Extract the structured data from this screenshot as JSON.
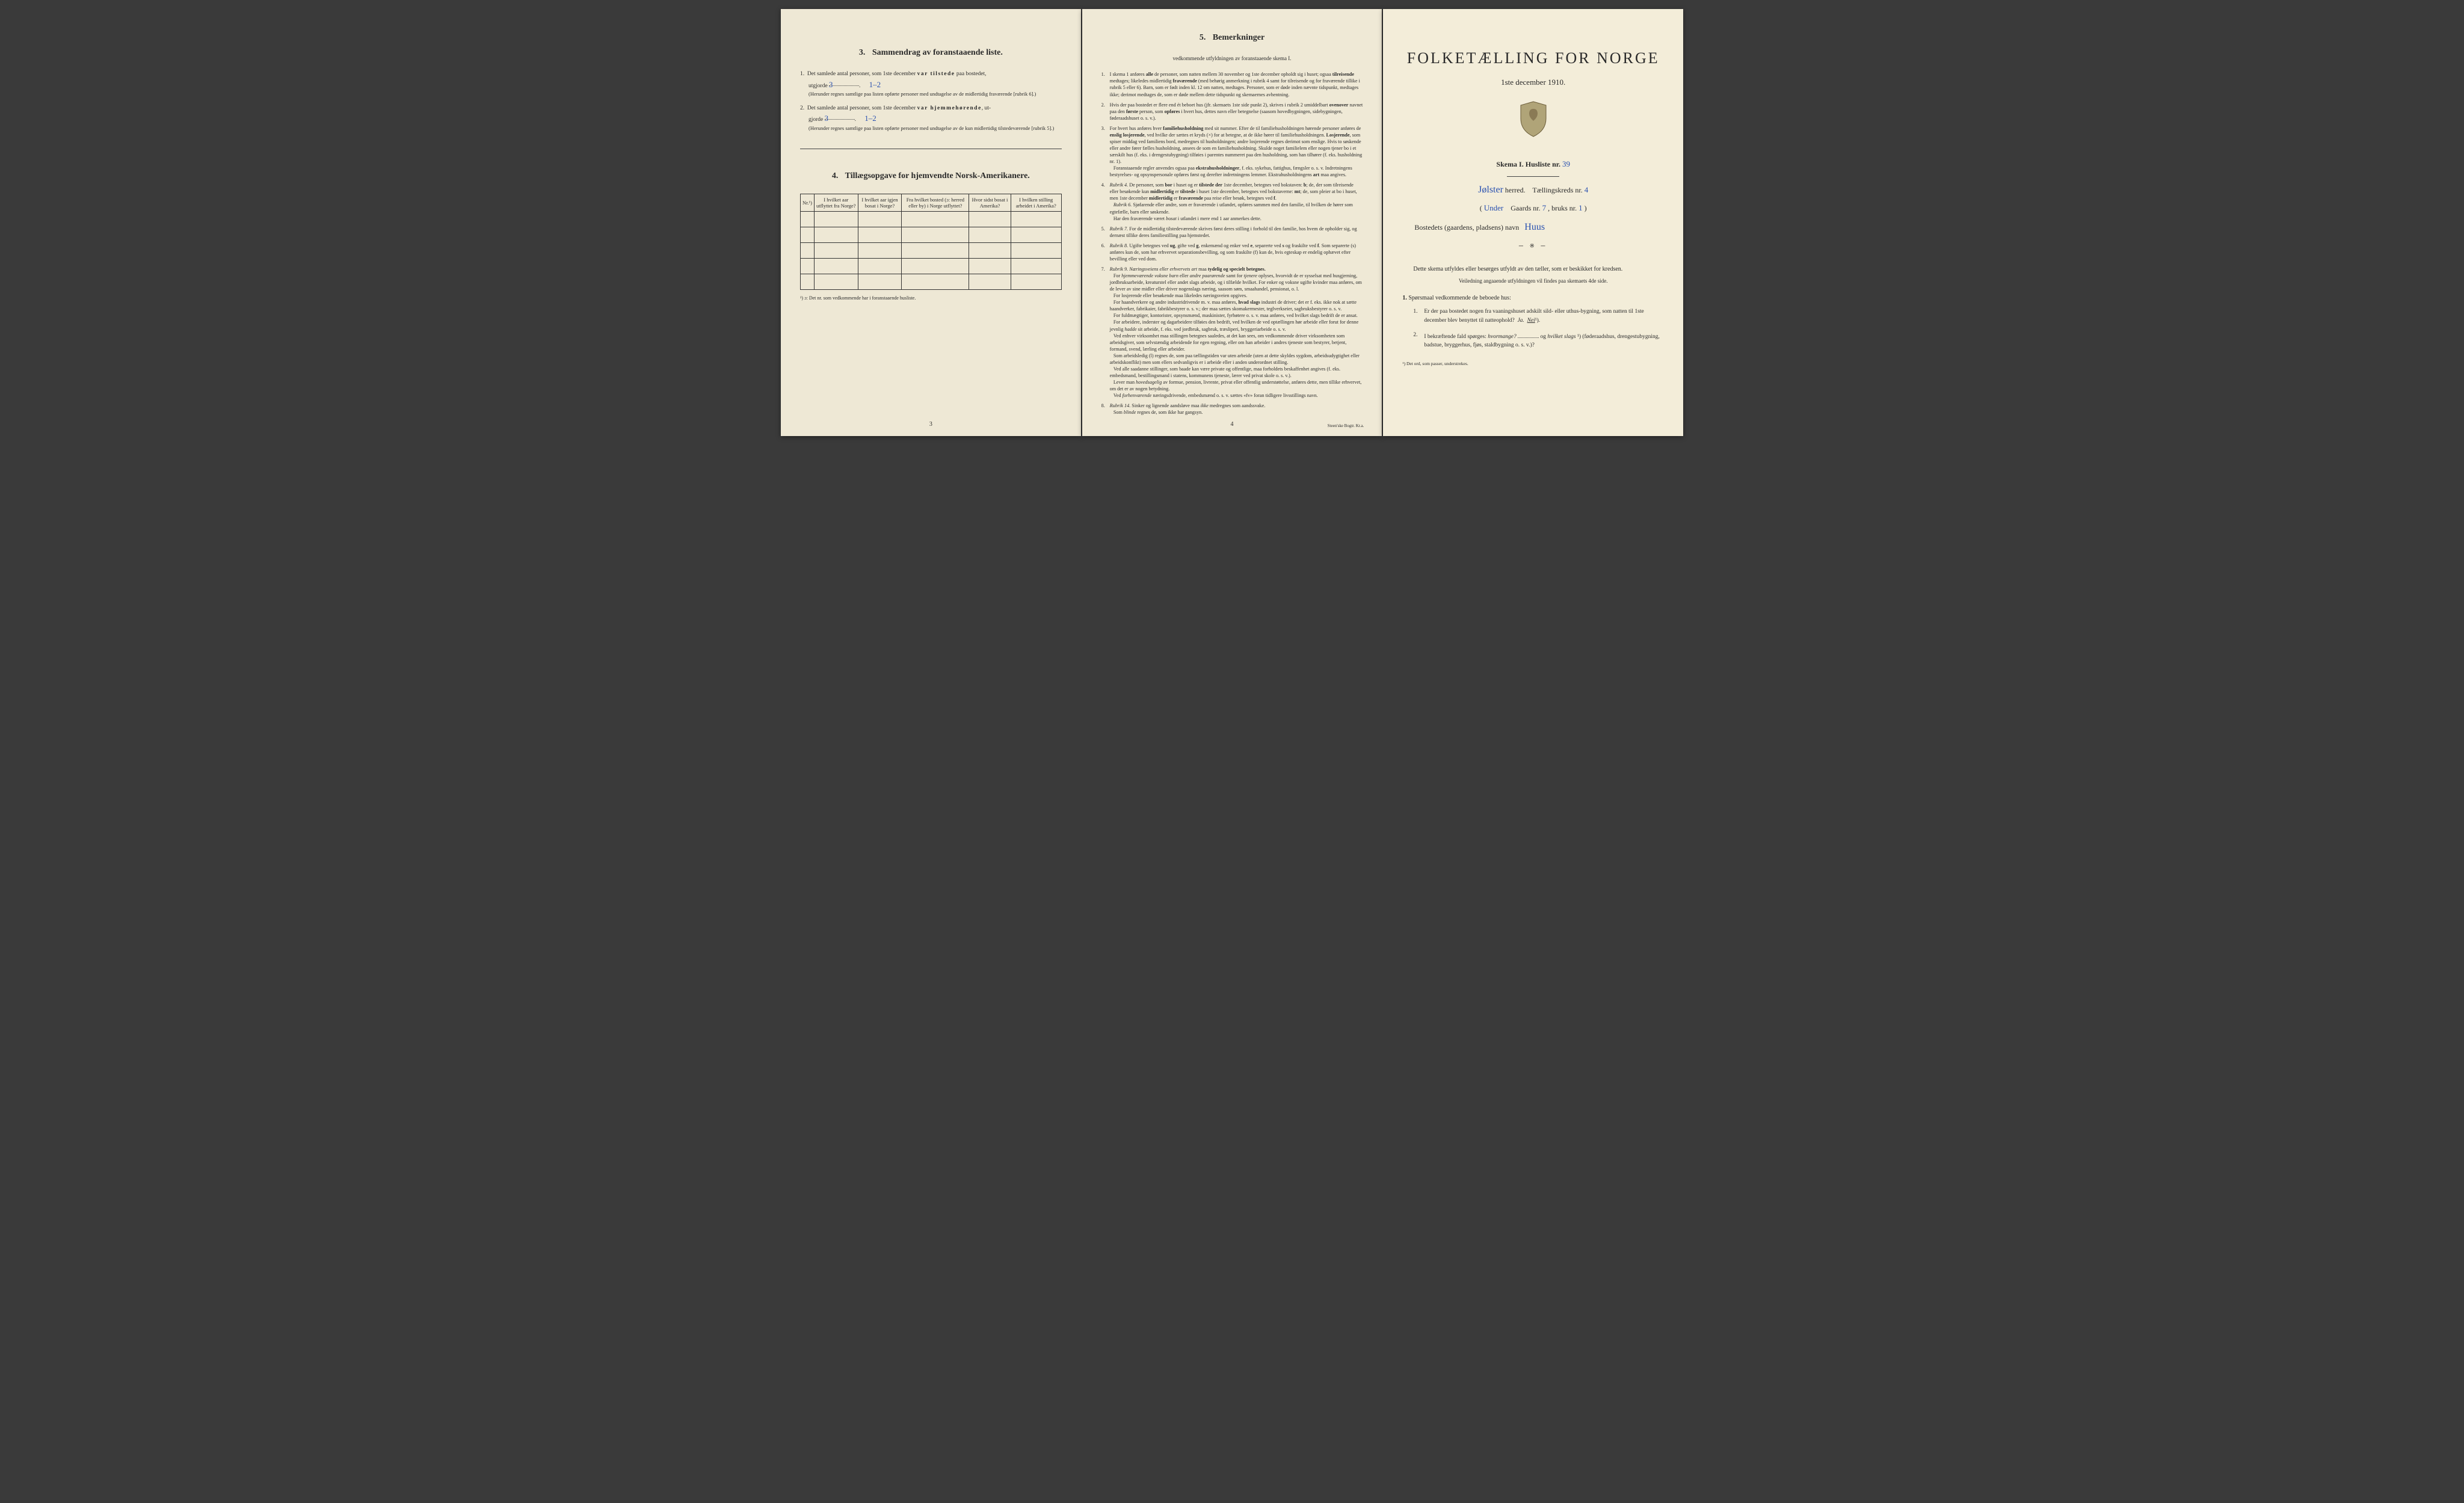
{
  "page3": {
    "section3": {
      "num": "3.",
      "title": "Sammendrag av foranstaaende liste.",
      "item1_pre": "Det samlede antal personer, som 1ste december",
      "item1_bold": "var tilstede",
      "item1_post": "paa bostedet,",
      "item1_line2a": "utgjorde",
      "item1_val1": "3",
      "item1_val2": "1–2",
      "item1_note": "(Herunder regnes samtlige paa listen opførte personer med undtagelse av de midlertidig fraværende [rubrik 6].)",
      "item2_pre": "Det samlede antal personer, som 1ste december",
      "item2_bold": "var hjemmehørende",
      "item2_post": ", ut-",
      "item2_line2a": "gjorde",
      "item2_val1": "3",
      "item2_val2": "1–2",
      "item2_note": "(Herunder regnes samtlige paa listen opførte personer med undtagelse av de kun midlertidig tilstedeværende [rubrik 5].)"
    },
    "section4": {
      "num": "4.",
      "title": "Tillægsopgave for hjemvendte Norsk-Amerikanere.",
      "cols": [
        "Nr.¹)",
        "I hvilket aar utflyttet fra Norge?",
        "I hvilket aar igjen bosat i Norge?",
        "Fra hvilket bosted (ɔ: herred eller by) i Norge utflyttet?",
        "Hvor sidst bosat i Amerika?",
        "I hvilken stilling arbeidet i Amerika?"
      ],
      "footnote": "¹) ɔ: Det nr. som vedkommende har i foranstaaende husliste."
    },
    "pagenum": "3"
  },
  "page4": {
    "section5": {
      "num": "5.",
      "title": "Bemerkninger",
      "sub": "vedkommende utfyldningen av foranstaaende skema I."
    },
    "items": [
      {
        "n": "1.",
        "t": "I skema 1 anføres <b>alle</b> de personer, som natten mellem 30 november og 1ste december opholdt sig i huset; ogsaa <b>tilreisende</b> medtages; likeledes midlertidig <b>fraværende</b> (med behørig anmerkning i rubrik 4 samt for tilreisende og for fraværende tillike i rubrik 5 eller 6). Barn, som er født inden kl. 12 om natten, medtages. Personer, som er døde inden nævnte tidspunkt, medtages ikke; derimot medtages de, som er døde mellem dette tidspunkt og skemaernes avhentning."
      },
      {
        "n": "2.",
        "t": "Hvis der paa bostedet er flere end ét beboet hus (jfr. skemaets 1ste side punkt 2), skrives i rubrik 2 umiddelbart <b>ovenover</b> navnet paa den <b>første</b> person, som <b>opføres</b> i hvert hus, dettes navn eller betegnelse (saasom hovedbygningen, sidebygningen, føderaadshuset o. s. v.)."
      },
      {
        "n": "3.",
        "t": "For hvert hus anføres hver <b>familiehusholdning</b> med sit nummer. Efter de til familiehusholdningen hørende personer anføres de <b>enslig losjerende</b>, ved hvilke der sættes et kryds (×) for at betegne, at de ikke hører til familiehusholdningen. <b>Losjerende</b>, som spiser middag ved familiens bord, medregnes til husholdningen; andre losjerende regnes derimot som enslige. Hvis to søskende eller andre fører fælles husholdning, ansees de som en familiehusholdning. Skulde noget familielem eller nogen tjener bo i et særskilt hus (f. eks. i drengestubygning) tilføies i parentes nummeret paa den husholdning, som han tilhører (f. eks. husholdning nr. 1).<br>&nbsp;&nbsp;&nbsp;Foranstaaende regler anvendes ogsaa paa <b>ekstrahusholdninger</b>, f. eks. sykehus, fattighus, fængsler o. s. v. Indretningens bestyrelses- og opsynspersonale opføres først og derefter indretningens lemmer. Ekstrahusholdningens <b>art</b> maa angives."
      },
      {
        "n": "4.",
        "t": "<em>Rubrik 4.</em> De personer, som <b>bor</b> i huset og er <b>tilstede der</b> 1ste december, betegnes ved bokstaven: <b>b</b>; de, der som tilreisende eller besøkende kun <b>midlertidig</b> er <b>tilstede</b> i huset 1ste december, betegnes ved bokstaverne: <b>mt</b>; de, som pleier at bo i huset, men 1ste december <b>midlertidig</b> er <b>fraværende</b> paa reise eller besøk, betegnes ved <b>f</b>.<br>&nbsp;&nbsp;&nbsp;<em>Rubrik 6.</em> Sjøfarende eller andre, som er fraværende i utlandet, opføres sammen med den familie, til hvilken de hører som egtefælle, barn eller søskende.<br>&nbsp;&nbsp;&nbsp;Har den fraværende været <em>bosat</em> i utlandet i mere end 1 aar anmerkes dette."
      },
      {
        "n": "5.",
        "t": "<em>Rubrik 7.</em> For de midlertidig tilstedeværende skrives først deres stilling i forhold til den familie, hos hvem de opholder sig, og dernæst tillike deres familiestilling paa hjemstedet."
      },
      {
        "n": "6.",
        "t": "<em>Rubrik 8.</em> Ugifte betegnes ved <b>ug</b>, gifte ved <b>g</b>, enkemænd og enker ved <b>e</b>, separerte ved <b>s</b> og fraskilte ved <b>f</b>. Som separerte (s) anføres kun de, som har erhvervet separationsbevilling, og som fraskilte (f) kun de, hvis egteskap er endelig ophævet efter bevilling eller ved dom."
      },
      {
        "n": "7.",
        "t": "<em>Rubrik 9.</em> <em>Næringsveiens eller erhvervets art</em> maa <b>tydelig og specielt betegnes.</b><br>&nbsp;&nbsp;&nbsp;For <em>hjemmeværende voksne barn</em> eller <em>andre paarørende</em> samt for <em>tjenere</em> oplyses, hvorvidt de er sysselsat med husgjerning, jordbruksarbeide, kreaturstel eller andet slags arbeide, og i tilfælde hvilket. For enker og voksne ugifte kvinder maa anføres, om de lever av sine midler eller driver nogenslags næring, saasom søm, smaahandel, pensionat, o. l.<br>&nbsp;&nbsp;&nbsp;For losjerende eller besøkende maa likeledes næringsveien opgives.<br>&nbsp;&nbsp;&nbsp;For haandverkere og andre industridrivende m. v. maa anføres, <b>hvad slags</b> industri de driver; det er f. eks. ikke nok at sætte haandverker, fabrikaier, fabrikbestyrer o. s. v.; der maa sættes skomakermester, teglverkseier, sagbruksbestyrer o. s. v.<br>&nbsp;&nbsp;&nbsp;For fuldmægtiger, kontorister, opsynsmænd, maskinister, fyrbøtere o. s. v. maa anføres, ved hvilket slags bedrift de er ansat.<br>&nbsp;&nbsp;&nbsp;For arbeidere, inderster og dagarbeidere tilføies den bedrift, ved hvilken de ved optællingen hør arbeide eller forut for denne jevnlig <em>hadde</em> sit arbeide, f. eks. ved jordbruk, sagbruk, træsliperi, bryggeriarbeide o. s. v.<br>&nbsp;&nbsp;&nbsp;Ved enhver virksomhet maa stillingen betegnes saaledes, at det kan sees, om vedkommende driver virksomheten som arbeidsgiver, som selvstændig arbeidende for egen regning, eller om han arbeider i andres tjeneste som bestyrer, betjent, formand, svend, lærling eller arbeider.<br>&nbsp;&nbsp;&nbsp;Som arbeidsledig (l) regnes de, som paa tællingstiden var uten arbeide (uten at dette skyldes sygdom, arbeidsudygtighet eller arbeidskonflikt) men som ellers sedvanligvis er i arbeide eller i anden underordnet stilling.<br>&nbsp;&nbsp;&nbsp;Ved alle saadanne stillinger, som baade kan være private og offentlige, maa forholdets beskaffenhet angives (f. eks. embedsmand, bestillingsmand i statens, kommunens tjeneste, lærer ved privat skole o. s. v.).<br>&nbsp;&nbsp;&nbsp;Lever man <em>hovedsagelig</em> av formue, pension, livrente, privat eller offentlig understøttelse, anføres dette, men tillike erhvervet, om det er av nogen betydning.<br>&nbsp;&nbsp;&nbsp;Ved <em>forhenværende</em> næringsdrivende, embedsmænd o. s. v. sættes «fv» foran tidligere livsstillings navn."
      },
      {
        "n": "8.",
        "t": "<em>Rubrik 14.</em> Sinker og lignende aandsløve maa <em>ikke</em> medregnes som aandssvake.<br>&nbsp;&nbsp;&nbsp;Som <em>blinde</em> regnes de, som ikke har gangsyn."
      }
    ],
    "pagenum": "4",
    "printer": "Steen'ske Bogtr. Kr.a."
  },
  "cover": {
    "title": "FOLKETÆLLING FOR NORGE",
    "date": "1ste december 1910.",
    "schema_pre": "Skema I.  Husliste nr.",
    "husliste_nr": "39",
    "herred": "Jølster",
    "herred_label": "herred.",
    "kreds_label": "Tællingskreds nr.",
    "kreds_nr": "4",
    "under": "Under",
    "gaards_label": "Gaards nr.",
    "gaards_nr": "7",
    "bruks_label": ", bruks nr.",
    "bruks_nr": "1",
    "bosted_label": "Bostedets (gaardens, pladsens) navn",
    "bosted_navn": "Huus",
    "intro": "Dette skema utfyldes eller besørges utfyldt av den tæller, som er beskikket for kredsen.",
    "intro2": "Veiledning angaaende utfyldningen vil findes paa skemaets 4de side.",
    "q_head_num": "1.",
    "q_head": "Spørsmaal vedkommende de beboede hus:",
    "q1": {
      "n": "1.",
      "t": "Er der paa bostedet nogen fra vaaningshuset adskilt sild- eller uthus-bygning, som natten til 1ste december blev benyttet til natteophold?",
      "ja": "Ja.",
      "nei": "Nei",
      "sup": "¹)."
    },
    "q2": {
      "n": "2.",
      "t_a": "I bekræftende fald spørges: ",
      "t_b": "hvormange?",
      "t_c": " og ",
      "t_d": "hvilket slags",
      "t_e": "¹) (føderaadshus, drengestubygning, badstue, bryggerhus, fjøs, staldbygning o. s. v.)?"
    },
    "footnote": "¹) Det ord, som passer, understrekes."
  }
}
